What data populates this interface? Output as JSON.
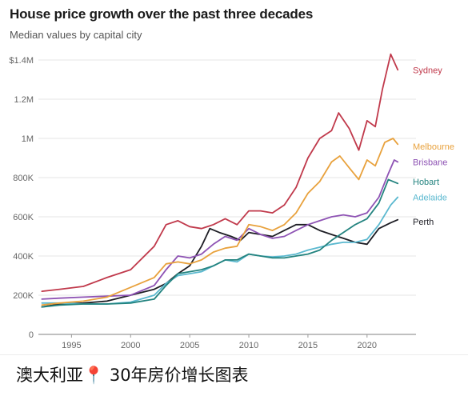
{
  "caption": {
    "before": "澳大利亚",
    "pin": "📍",
    "after": " 30年房价增长图表"
  },
  "chart_data": {
    "type": "line",
    "title": "House price growth over the past three decades",
    "subtitle": "Median values by capital city",
    "xlabel": "",
    "ylabel": "",
    "xlim": [
      1992.2,
      2023.6
    ],
    "ylim": [
      0,
      1400000
    ],
    "x_ticks": [
      1995,
      2000,
      2005,
      2010,
      2015,
      2020
    ],
    "y_ticks": [
      {
        "value": 0,
        "label": "0"
      },
      {
        "value": 200000,
        "label": "200K"
      },
      {
        "value": 400000,
        "label": "400K"
      },
      {
        "value": 600000,
        "label": "600K"
      },
      {
        "value": 800000,
        "label": "800K"
      },
      {
        "value": 1000000,
        "label": "1M"
      },
      {
        "value": 1200000,
        "label": "1.2M"
      },
      {
        "value": 1400000,
        "label": "$1.4M"
      }
    ],
    "grid": "horizontal",
    "legend": "end-of-line labels",
    "series": [
      {
        "name": "Sydney",
        "color": "#c0394b",
        "label_y": 1350000,
        "points": [
          [
            1992.5,
            220000
          ],
          [
            1994,
            230000
          ],
          [
            1996,
            245000
          ],
          [
            1998,
            290000
          ],
          [
            2000,
            330000
          ],
          [
            2002,
            450000
          ],
          [
            2003,
            560000
          ],
          [
            2004,
            580000
          ],
          [
            2005,
            550000
          ],
          [
            2006,
            540000
          ],
          [
            2007,
            560000
          ],
          [
            2008,
            590000
          ],
          [
            2009,
            560000
          ],
          [
            2010,
            630000
          ],
          [
            2011,
            630000
          ],
          [
            2012,
            620000
          ],
          [
            2013,
            660000
          ],
          [
            2014,
            750000
          ],
          [
            2015,
            900000
          ],
          [
            2016,
            1000000
          ],
          [
            2017,
            1040000
          ],
          [
            2017.6,
            1130000
          ],
          [
            2018.5,
            1050000
          ],
          [
            2019.3,
            940000
          ],
          [
            2020,
            1090000
          ],
          [
            2020.7,
            1060000
          ],
          [
            2021.3,
            1250000
          ],
          [
            2022,
            1430000
          ],
          [
            2022.6,
            1350000
          ]
        ]
      },
      {
        "name": "Melbourne",
        "color": "#e8a13c",
        "label_y": 960000,
        "points": [
          [
            1992.5,
            150000
          ],
          [
            1994,
            160000
          ],
          [
            1996,
            170000
          ],
          [
            1998,
            190000
          ],
          [
            2000,
            240000
          ],
          [
            2002,
            290000
          ],
          [
            2003,
            360000
          ],
          [
            2004,
            370000
          ],
          [
            2005,
            360000
          ],
          [
            2006,
            380000
          ],
          [
            2007,
            420000
          ],
          [
            2008,
            440000
          ],
          [
            2009,
            450000
          ],
          [
            2010,
            560000
          ],
          [
            2011,
            550000
          ],
          [
            2012,
            530000
          ],
          [
            2013,
            560000
          ],
          [
            2014,
            620000
          ],
          [
            2015,
            720000
          ],
          [
            2016,
            780000
          ],
          [
            2017,
            880000
          ],
          [
            2017.7,
            910000
          ],
          [
            2018.5,
            850000
          ],
          [
            2019.3,
            790000
          ],
          [
            2020,
            890000
          ],
          [
            2020.7,
            860000
          ],
          [
            2021.5,
            980000
          ],
          [
            2022.2,
            1000000
          ],
          [
            2022.6,
            970000
          ]
        ]
      },
      {
        "name": "Brisbane",
        "color": "#8e53b4",
        "label_y": 880000,
        "points": [
          [
            1992.5,
            180000
          ],
          [
            1994,
            185000
          ],
          [
            1996,
            190000
          ],
          [
            1998,
            195000
          ],
          [
            2000,
            200000
          ],
          [
            2002,
            250000
          ],
          [
            2003,
            330000
          ],
          [
            2004,
            400000
          ],
          [
            2005,
            390000
          ],
          [
            2006,
            410000
          ],
          [
            2007,
            460000
          ],
          [
            2008,
            500000
          ],
          [
            2009,
            480000
          ],
          [
            2010,
            540000
          ],
          [
            2011,
            510000
          ],
          [
            2012,
            490000
          ],
          [
            2013,
            500000
          ],
          [
            2014,
            530000
          ],
          [
            2015,
            560000
          ],
          [
            2016,
            580000
          ],
          [
            2017,
            600000
          ],
          [
            2018,
            610000
          ],
          [
            2019,
            600000
          ],
          [
            2020,
            620000
          ],
          [
            2021,
            700000
          ],
          [
            2021.8,
            820000
          ],
          [
            2022.3,
            890000
          ],
          [
            2022.6,
            880000
          ]
        ]
      },
      {
        "name": "Hobart",
        "color": "#23837f",
        "label_y": 780000,
        "points": [
          [
            1992.5,
            140000
          ],
          [
            1994,
            150000
          ],
          [
            1996,
            155000
          ],
          [
            1998,
            155000
          ],
          [
            2000,
            160000
          ],
          [
            2002,
            180000
          ],
          [
            2003,
            250000
          ],
          [
            2004,
            310000
          ],
          [
            2005,
            320000
          ],
          [
            2006,
            330000
          ],
          [
            2007,
            350000
          ],
          [
            2008,
            380000
          ],
          [
            2009,
            380000
          ],
          [
            2010,
            410000
          ],
          [
            2011,
            400000
          ],
          [
            2012,
            390000
          ],
          [
            2013,
            390000
          ],
          [
            2014,
            400000
          ],
          [
            2015,
            410000
          ],
          [
            2016,
            430000
          ],
          [
            2017,
            480000
          ],
          [
            2018,
            520000
          ],
          [
            2019,
            560000
          ],
          [
            2020,
            590000
          ],
          [
            2021,
            670000
          ],
          [
            2021.8,
            790000
          ],
          [
            2022.6,
            770000
          ]
        ]
      },
      {
        "name": "Adelaide",
        "color": "#5ab8cf",
        "label_y": 700000,
        "points": [
          [
            1992.5,
            160000
          ],
          [
            1994,
            160000
          ],
          [
            1996,
            155000
          ],
          [
            1998,
            155000
          ],
          [
            2000,
            165000
          ],
          [
            2002,
            200000
          ],
          [
            2003,
            260000
          ],
          [
            2004,
            300000
          ],
          [
            2005,
            310000
          ],
          [
            2006,
            320000
          ],
          [
            2007,
            350000
          ],
          [
            2008,
            380000
          ],
          [
            2009,
            370000
          ],
          [
            2010,
            410000
          ],
          [
            2011,
            400000
          ],
          [
            2012,
            395000
          ],
          [
            2013,
            400000
          ],
          [
            2014,
            410000
          ],
          [
            2015,
            430000
          ],
          [
            2016,
            445000
          ],
          [
            2017,
            460000
          ],
          [
            2018,
            470000
          ],
          [
            2019,
            470000
          ],
          [
            2020,
            485000
          ],
          [
            2021,
            560000
          ],
          [
            2022,
            660000
          ],
          [
            2022.6,
            700000
          ]
        ]
      },
      {
        "name": "Perth",
        "color": "#1d1d24",
        "label_y": 575000,
        "points": [
          [
            1992.5,
            140000
          ],
          [
            1994,
            155000
          ],
          [
            1996,
            160000
          ],
          [
            1998,
            170000
          ],
          [
            2000,
            200000
          ],
          [
            2002,
            230000
          ],
          [
            2003,
            260000
          ],
          [
            2004,
            310000
          ],
          [
            2005,
            350000
          ],
          [
            2006,
            450000
          ],
          [
            2006.7,
            540000
          ],
          [
            2007.5,
            520000
          ],
          [
            2008.5,
            500000
          ],
          [
            2009.3,
            480000
          ],
          [
            2010,
            520000
          ],
          [
            2011,
            510000
          ],
          [
            2012,
            500000
          ],
          [
            2013,
            530000
          ],
          [
            2014,
            560000
          ],
          [
            2015,
            560000
          ],
          [
            2016,
            530000
          ],
          [
            2017,
            510000
          ],
          [
            2018,
            490000
          ],
          [
            2019,
            470000
          ],
          [
            2020,
            460000
          ],
          [
            2021,
            540000
          ],
          [
            2022,
            570000
          ],
          [
            2022.6,
            585000
          ]
        ]
      }
    ]
  }
}
